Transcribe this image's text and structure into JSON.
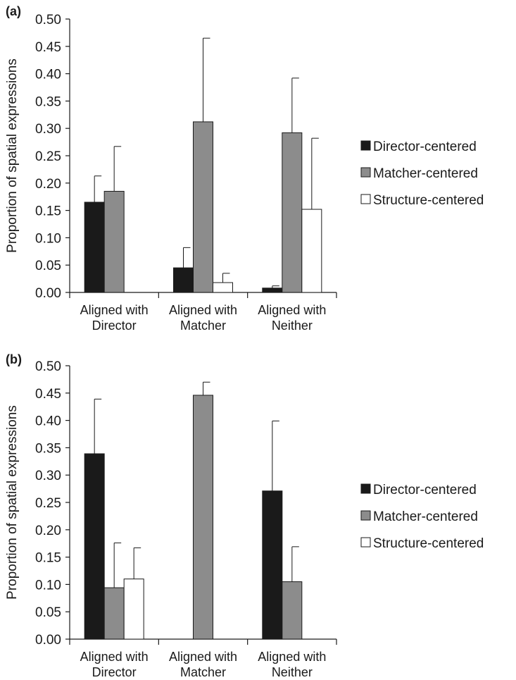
{
  "chart_data": [
    {
      "panel_label": "(a)",
      "type": "bar",
      "ylabel": "Proportion of spatial expressions",
      "ylim": [
        0,
        0.5
      ],
      "ytick_step": 0.05,
      "ytick_labels": [
        "0.00",
        "0.05",
        "0.10",
        "0.15",
        "0.20",
        "0.25",
        "0.30",
        "0.35",
        "0.40",
        "0.45",
        "0.50"
      ],
      "categories": [
        [
          "Aligned with",
          "Director"
        ],
        [
          "Aligned with",
          "Matcher"
        ],
        [
          "Aligned with",
          "Neither"
        ]
      ],
      "series": [
        {
          "name": "Director-centered",
          "color": "#1a1a1a",
          "values": [
            0.165,
            0.045,
            0.008
          ],
          "errors": [
            0.048,
            0.037,
            0.004
          ]
        },
        {
          "name": "Matcher-centered",
          "color": "#8c8c8c",
          "values": [
            0.185,
            0.312,
            0.292
          ],
          "errors": [
            0.082,
            0.153,
            0.1
          ]
        },
        {
          "name": "Structure-centered",
          "color": "#ffffff",
          "values": [
            0,
            0.018,
            0.152
          ],
          "errors": [
            0,
            0.017,
            0.13
          ]
        }
      ],
      "legend_position": "right",
      "grid": false
    },
    {
      "panel_label": "(b)",
      "type": "bar",
      "ylabel": "Proportion of spatial expressions",
      "ylim": [
        0,
        0.5
      ],
      "ytick_step": 0.05,
      "ytick_labels": [
        "0.00",
        "0.05",
        "0.10",
        "0.15",
        "0.20",
        "0.25",
        "0.30",
        "0.35",
        "0.40",
        "0.45",
        "0.50"
      ],
      "categories": [
        [
          "Aligned with",
          "Director"
        ],
        [
          "Aligned with",
          "Matcher"
        ],
        [
          "Aligned with",
          "Neither"
        ]
      ],
      "series": [
        {
          "name": "Director-centered",
          "color": "#1a1a1a",
          "values": [
            0.339,
            0,
            0.271
          ],
          "errors": [
            0.1,
            0,
            0.128
          ]
        },
        {
          "name": "Matcher-centered",
          "color": "#8c8c8c",
          "values": [
            0.094,
            0.446,
            0.105
          ],
          "errors": [
            0.082,
            0.024,
            0.064
          ]
        },
        {
          "name": "Structure-centered",
          "color": "#ffffff",
          "values": [
            0.11,
            0,
            0
          ],
          "errors": [
            0.057,
            0,
            0
          ]
        }
      ],
      "legend_position": "right",
      "grid": false
    }
  ]
}
